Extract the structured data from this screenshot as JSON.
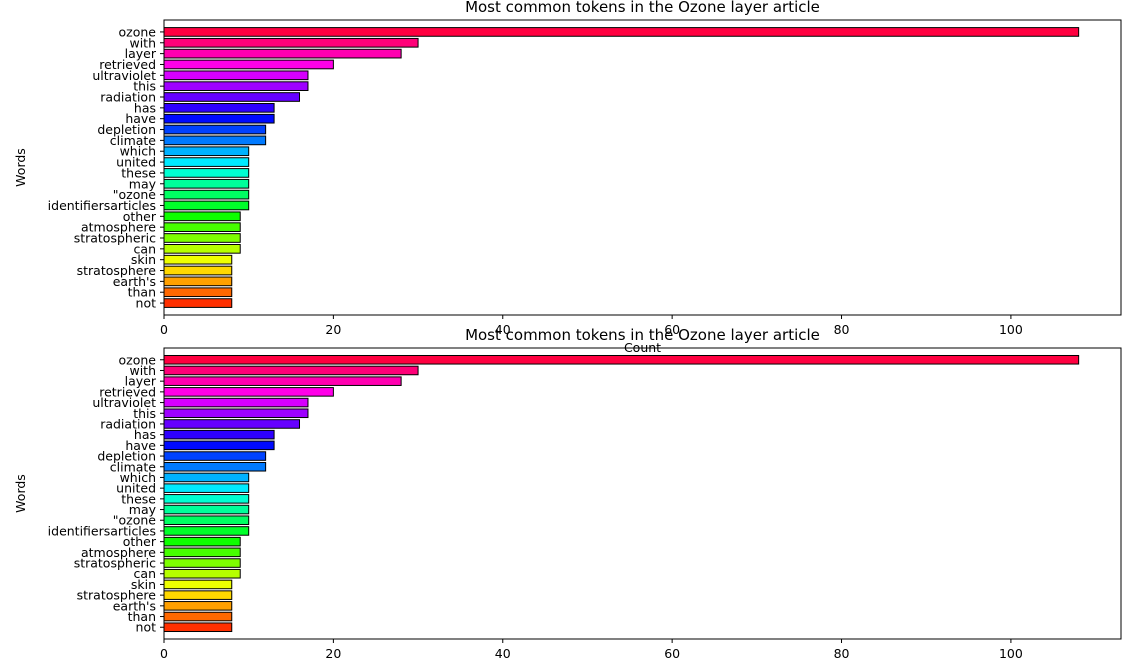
{
  "chart_data": [
    {
      "type": "bar",
      "orientation": "horizontal",
      "title": "Most common tokens in the Ozone layer article",
      "xlabel": "Count",
      "ylabel": "Words",
      "xlim": [
        0,
        113
      ],
      "xticks": [
        "0",
        "20",
        "40",
        "60",
        "80",
        "100"
      ],
      "grid": false,
      "categories": [
        "ozone",
        "with",
        "layer",
        "retrieved",
        "ultraviolet",
        "this",
        "radiation",
        "has",
        "have",
        "depletion",
        "climate",
        "which",
        "united",
        "these",
        "may",
        "\"ozone",
        "identifiersarticles",
        "other",
        "atmosphere",
        "stratospheric",
        "can",
        "skin",
        "stratosphere",
        "earth's",
        "than",
        "not"
      ],
      "values": [
        108,
        30,
        28,
        20,
        17,
        17,
        16,
        13,
        13,
        12,
        12,
        10,
        10,
        10,
        10,
        10,
        10,
        9,
        9,
        9,
        9,
        8,
        8,
        8,
        8,
        8
      ],
      "colors": [
        "#ff0040",
        "#ff0078",
        "#ff00b0",
        "#ff00e8",
        "#d600ff",
        "#9e00ff",
        "#6600ff",
        "#2e00ff",
        "#000aff",
        "#0042ff",
        "#007aff",
        "#00b2ff",
        "#00eaff",
        "#00ffd2",
        "#00ff9a",
        "#00ff62",
        "#00ff2a",
        "#0eff00",
        "#46ff00",
        "#7eff00",
        "#b6ff00",
        "#eeff00",
        "#ffd800",
        "#ffa000",
        "#ff6800",
        "#ff3000"
      ]
    },
    {
      "type": "bar",
      "orientation": "horizontal",
      "title": "Most common tokens in the Ozone layer article",
      "xlabel": "",
      "ylabel": "Words",
      "xlim": [
        0,
        113
      ],
      "xticks": [
        "0",
        "20",
        "40",
        "60",
        "80",
        "100"
      ],
      "grid": false,
      "categories": [
        "ozone",
        "with",
        "layer",
        "retrieved",
        "ultraviolet",
        "this",
        "radiation",
        "has",
        "have",
        "depletion",
        "climate",
        "which",
        "united",
        "these",
        "may",
        "\"ozone",
        "identifiersarticles",
        "other",
        "atmosphere",
        "stratospheric",
        "can",
        "skin",
        "stratosphere",
        "earth's",
        "than",
        "not"
      ],
      "values": [
        108,
        30,
        28,
        20,
        17,
        17,
        16,
        13,
        13,
        12,
        12,
        10,
        10,
        10,
        10,
        10,
        10,
        9,
        9,
        9,
        9,
        8,
        8,
        8,
        8,
        8
      ],
      "colors": [
        "#ff0040",
        "#ff0078",
        "#ff00b0",
        "#ff00e8",
        "#d600ff",
        "#9e00ff",
        "#6600ff",
        "#2e00ff",
        "#000aff",
        "#0042ff",
        "#007aff",
        "#00b2ff",
        "#00eaff",
        "#00ffd2",
        "#00ff9a",
        "#00ff62",
        "#00ff2a",
        "#0eff00",
        "#46ff00",
        "#7eff00",
        "#b6ff00",
        "#eeff00",
        "#ffd800",
        "#ffa000",
        "#ff6800",
        "#ff3000"
      ]
    }
  ]
}
